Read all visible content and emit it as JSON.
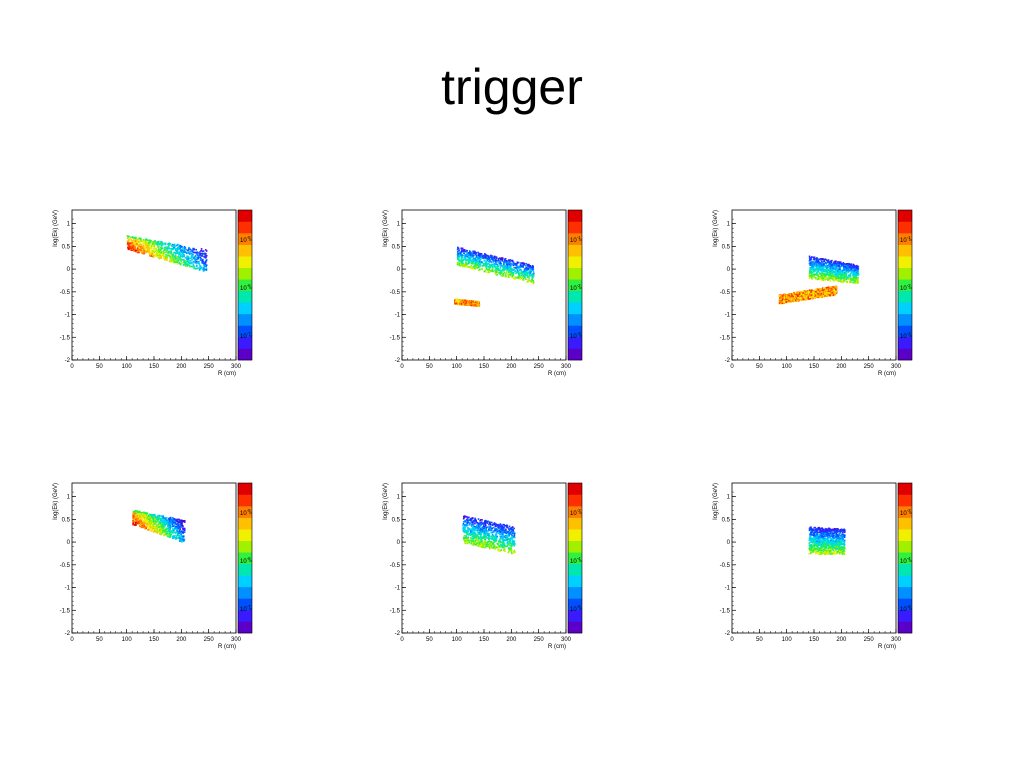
{
  "slide": {
    "title": "trigger"
  },
  "chart_data": [
    {
      "type": "heatmap",
      "title": "",
      "xlabel": "R (cm)",
      "ylabel": "log(Ek) (GeV)",
      "xlim": [
        0,
        300
      ],
      "ylim": [
        -2,
        1.3
      ],
      "x_ticks": [
        0,
        50,
        100,
        150,
        200,
        250,
        300
      ],
      "y_ticks": [
        -2,
        -1.5,
        -1,
        -0.5,
        0,
        0.5,
        1
      ],
      "colorbar_ticks": [
        "10^-5",
        "10^-6",
        "10^-7"
      ],
      "color_scale": "log",
      "grid": false,
      "regions": [
        {
          "x_range": [
            100,
            245
          ],
          "y_top": [
            0.75,
            0.45
          ],
          "y_bottom": [
            0.45,
            -0.05
          ],
          "color_gradient": "red-to-blue"
        }
      ]
    },
    {
      "type": "heatmap",
      "title": "",
      "xlabel": "R (cm)",
      "ylabel": "log(Ek) (GeV)",
      "xlim": [
        0,
        300
      ],
      "ylim": [
        -2,
        1.3
      ],
      "x_ticks": [
        0,
        50,
        100,
        150,
        200,
        250,
        300
      ],
      "y_ticks": [
        -2,
        -1.5,
        -1,
        -0.5,
        0,
        0.5,
        1
      ],
      "colorbar_ticks": [
        "10^-1",
        "10^-2",
        "10^-3"
      ],
      "color_scale": "log",
      "grid": false,
      "regions": [
        {
          "x_range": [
            100,
            240
          ],
          "y_top": [
            0.5,
            0.1
          ],
          "y_bottom": [
            0.1,
            -0.3
          ],
          "color_gradient": "blue-to-green"
        },
        {
          "x_range": [
            95,
            140
          ],
          "y_top": [
            -0.65,
            -0.7
          ],
          "y_bottom": [
            -0.75,
            -0.8
          ],
          "color_gradient": "orange"
        }
      ]
    },
    {
      "type": "heatmap",
      "title": "",
      "xlabel": "R (cm)",
      "ylabel": "log(Ek) (GeV)",
      "xlim": [
        0,
        300
      ],
      "ylim": [
        -2,
        1.3
      ],
      "x_ticks": [
        0,
        50,
        100,
        150,
        200,
        250,
        300
      ],
      "y_ticks": [
        -2,
        -1.5,
        -1,
        -0.5,
        0,
        0.5,
        1
      ],
      "colorbar_ticks": [
        "10^-1",
        "10^-2",
        "10^-3"
      ],
      "color_scale": "log",
      "grid": false,
      "regions": [
        {
          "x_range": [
            140,
            230
          ],
          "y_top": [
            0.3,
            0.1
          ],
          "y_bottom": [
            -0.2,
            -0.3
          ],
          "color_gradient": "blue-to-green"
        },
        {
          "x_range": [
            85,
            190
          ],
          "y_top": [
            -0.55,
            -0.35
          ],
          "y_bottom": [
            -0.75,
            -0.55
          ],
          "color_gradient": "orange"
        }
      ]
    },
    {
      "type": "heatmap",
      "title": "",
      "xlabel": "R (cm)",
      "ylabel": "log(Ek) (GeV)",
      "xlim": [
        0,
        300
      ],
      "ylim": [
        -2,
        1.3
      ],
      "x_ticks": [
        0,
        50,
        100,
        150,
        200,
        250,
        300
      ],
      "y_ticks": [
        -2,
        -1.5,
        -1,
        -0.5,
        0,
        0.5,
        1
      ],
      "colorbar_ticks": [
        "10^-5",
        "10^-6",
        "10^-7"
      ],
      "color_scale": "log",
      "grid": false,
      "regions": [
        {
          "x_range": [
            110,
            205
          ],
          "y_top": [
            0.72,
            0.5
          ],
          "y_bottom": [
            0.4,
            0.0
          ],
          "color_gradient": "red-to-blue"
        }
      ]
    },
    {
      "type": "heatmap",
      "title": "",
      "xlabel": "R (cm)",
      "ylabel": "log(Ek) (GeV)",
      "xlim": [
        0,
        300
      ],
      "ylim": [
        -2,
        1.3
      ],
      "x_ticks": [
        0,
        50,
        100,
        150,
        200,
        250,
        300
      ],
      "y_ticks": [
        -2,
        -1.5,
        -1,
        -0.5,
        0,
        0.5,
        1
      ],
      "colorbar_ticks": [
        "10^-3",
        "10^-4",
        "10^-5"
      ],
      "color_scale": "log",
      "grid": false,
      "regions": [
        {
          "x_range": [
            110,
            205
          ],
          "y_top": [
            0.6,
            0.35
          ],
          "y_bottom": [
            0.0,
            -0.25
          ],
          "color_gradient": "blue-to-green"
        }
      ]
    },
    {
      "type": "heatmap",
      "title": "",
      "xlabel": "R (cm)",
      "ylabel": "log(Ek) (GeV)",
      "xlim": [
        0,
        300
      ],
      "ylim": [
        -2,
        1.3
      ],
      "x_ticks": [
        0,
        50,
        100,
        150,
        200,
        250,
        300
      ],
      "y_ticks": [
        -2,
        -1.5,
        -1,
        -0.5,
        0,
        0.5,
        1
      ],
      "colorbar_ticks": [
        "10^-3",
        "10^-4",
        "10^-5"
      ],
      "color_scale": "log",
      "grid": false,
      "regions": [
        {
          "x_range": [
            140,
            205
          ],
          "y_top": [
            0.35,
            0.3
          ],
          "y_bottom": [
            -0.25,
            -0.25
          ],
          "color_gradient": "blue-to-green"
        }
      ]
    }
  ]
}
